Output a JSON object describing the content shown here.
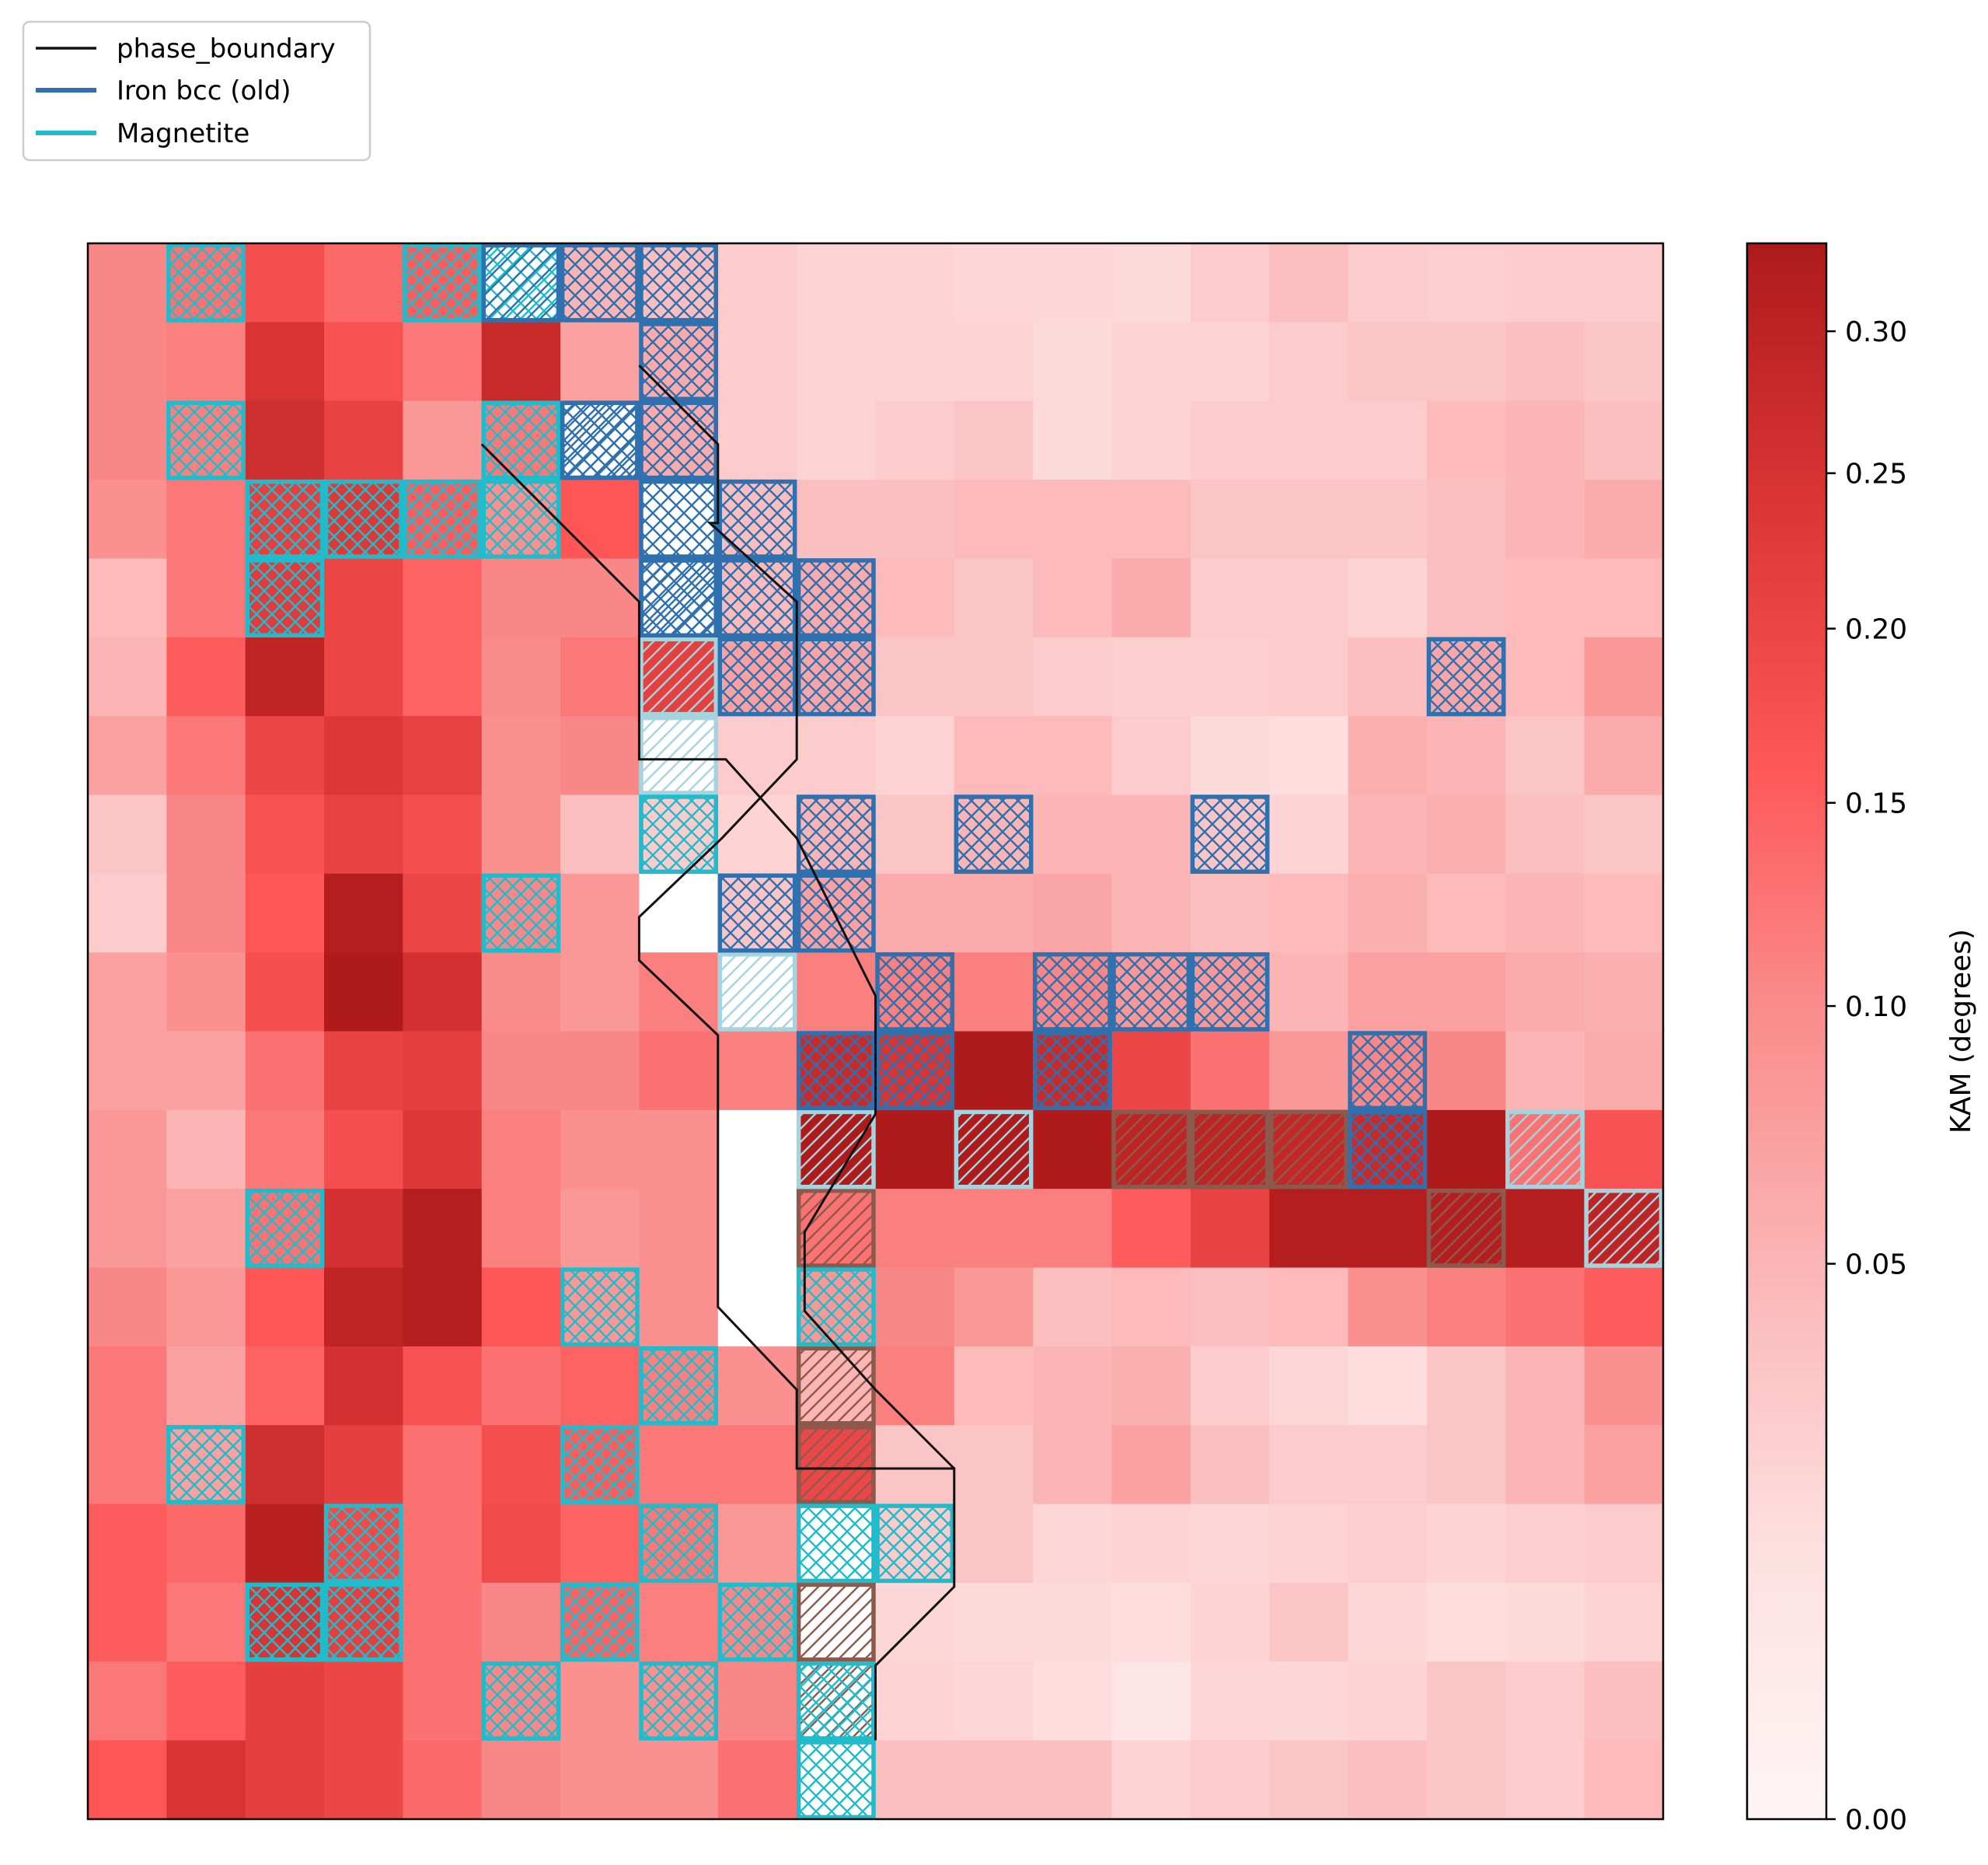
{
  "chart_data": {
    "type": "heatmap",
    "title": "",
    "xlabel": "",
    "ylabel": "",
    "grid": false,
    "legend_placement": "top-left, outside axes",
    "legend": [
      {
        "label": "phase_boundary",
        "color": "#111111"
      },
      {
        "label": "Iron bcc (old)",
        "color": "#2f70af"
      },
      {
        "label": "Magnetite",
        "color": "#20bccb"
      }
    ],
    "colorbar": {
      "label": "KAM (degrees)",
      "range": [
        0,
        0.333
      ],
      "ticks": [
        "0.00",
        "0.05",
        "0.10",
        "0.15",
        "0.20",
        "0.25",
        "0.30"
      ],
      "tick_values": [
        0,
        0.05,
        0.1,
        0.15,
        0.2,
        0.25,
        0.3
      ],
      "nonlinear_scale": true,
      "colormap": [
        "#fff5f5",
        "#fdd6d6",
        "#fbb0b0",
        "#fa8484",
        "#fe5656",
        "#de3838",
        "#ae1a1a"
      ]
    },
    "grid_size": {
      "cols": 20,
      "rows": 20
    },
    "kam_values": [
      [
        0.09,
        0.12,
        0.18,
        0.13,
        0.15,
        0.0,
        0.04,
        0.03,
        0.02,
        0.015,
        0.015,
        0.012,
        0.012,
        0.01,
        0.02,
        0.03,
        0.02,
        0.018,
        0.02,
        0.02
      ],
      [
        0.09,
        0.1,
        0.25,
        0.17,
        0.11,
        0.28,
        0.06,
        0.05,
        0.02,
        0.015,
        0.015,
        0.015,
        0.01,
        0.015,
        0.015,
        0.02,
        0.025,
        0.025,
        0.03,
        0.025
      ],
      [
        0.09,
        0.1,
        0.27,
        0.21,
        0.07,
        0.11,
        0.0,
        0.05,
        0.02,
        0.015,
        0.02,
        0.025,
        0.01,
        0.015,
        0.02,
        0.02,
        0.02,
        0.035,
        0.04,
        0.03
      ],
      [
        0.08,
        0.11,
        0.22,
        0.24,
        0.15,
        0.08,
        0.16,
        0.0,
        0.03,
        0.03,
        0.03,
        0.035,
        0.035,
        0.035,
        0.025,
        0.025,
        0.025,
        0.03,
        0.04,
        0.05
      ],
      [
        0.035,
        0.11,
        0.23,
        0.2,
        0.14,
        0.09,
        0.09,
        0.0,
        0.035,
        0.05,
        0.035,
        0.025,
        0.035,
        0.05,
        0.02,
        0.02,
        0.015,
        0.03,
        0.035,
        0.035
      ],
      [
        0.04,
        0.15,
        0.3,
        0.2,
        0.14,
        0.085,
        0.11,
        0.22,
        0.06,
        0.055,
        0.025,
        0.025,
        0.02,
        0.018,
        0.018,
        0.02,
        0.03,
        0.055,
        0.035,
        0.07
      ],
      [
        0.06,
        0.11,
        0.2,
        0.24,
        0.21,
        0.08,
        0.09,
        0.0,
        0.02,
        0.02,
        0.015,
        0.035,
        0.035,
        0.02,
        0.01,
        0.008,
        0.045,
        0.04,
        0.025,
        0.05
      ],
      [
        0.025,
        0.09,
        0.17,
        0.21,
        0.18,
        0.08,
        0.03,
        0.02,
        0.015,
        0.04,
        0.025,
        0.04,
        0.04,
        0.04,
        0.025,
        0.015,
        0.04,
        0.045,
        0.03,
        0.025
      ],
      [
        0.02,
        0.09,
        0.16,
        0.32,
        0.2,
        0.09,
        0.07,
        0.0,
        0.025,
        0.06,
        0.05,
        0.05,
        0.055,
        0.04,
        0.03,
        0.035,
        0.045,
        0.035,
        0.04,
        0.035
      ],
      [
        0.06,
        0.08,
        0.18,
        0.33,
        0.26,
        0.085,
        0.07,
        0.1,
        0.0,
        0.1,
        0.1,
        0.1,
        0.09,
        0.07,
        0.07,
        0.04,
        0.06,
        0.06,
        0.05,
        0.045
      ],
      [
        0.06,
        0.06,
        0.12,
        0.21,
        0.22,
        0.09,
        0.09,
        0.12,
        0.1,
        0.28,
        0.25,
        0.33,
        0.28,
        0.2,
        0.12,
        0.07,
        0.09,
        0.09,
        0.04,
        0.05
      ],
      [
        0.07,
        0.04,
        0.11,
        0.18,
        0.24,
        0.1,
        0.08,
        0.08,
        0.0,
        0.33,
        0.33,
        0.33,
        0.33,
        0.3,
        0.3,
        0.29,
        0.28,
        0.33,
        0.12,
        0.17
      ],
      [
        0.07,
        0.06,
        0.12,
        0.26,
        0.32,
        0.1,
        0.07,
        0.08,
        0.0,
        0.12,
        0.1,
        0.1,
        0.1,
        0.15,
        0.21,
        0.32,
        0.32,
        0.32,
        0.32,
        0.3
      ],
      [
        0.09,
        0.07,
        0.16,
        0.3,
        0.32,
        0.16,
        0.07,
        0.08,
        0.0,
        0.07,
        0.09,
        0.07,
        0.03,
        0.035,
        0.03,
        0.035,
        0.08,
        0.1,
        0.12,
        0.15
      ],
      [
        0.11,
        0.06,
        0.14,
        0.26,
        0.17,
        0.12,
        0.14,
        0.1,
        0.08,
        0.04,
        0.1,
        0.035,
        0.04,
        0.045,
        0.02,
        0.012,
        0.008,
        0.025,
        0.04,
        0.08
      ],
      [
        0.11,
        0.06,
        0.27,
        0.22,
        0.12,
        0.18,
        0.15,
        0.11,
        0.11,
        0.2,
        0.025,
        0.025,
        0.04,
        0.06,
        0.03,
        0.02,
        0.02,
        0.025,
        0.04,
        0.06
      ],
      [
        0.15,
        0.13,
        0.31,
        0.19,
        0.12,
        0.19,
        0.14,
        0.11,
        0.07,
        0.0,
        0.02,
        0.025,
        0.012,
        0.015,
        0.012,
        0.015,
        0.018,
        0.015,
        0.018,
        0.02
      ],
      [
        0.15,
        0.11,
        0.25,
        0.22,
        0.12,
        0.09,
        0.14,
        0.1,
        0.09,
        0.0,
        0.012,
        0.01,
        0.01,
        0.008,
        0.015,
        0.025,
        0.012,
        0.008,
        0.01,
        0.015
      ],
      [
        0.11,
        0.15,
        0.22,
        0.2,
        0.12,
        0.09,
        0.08,
        0.08,
        0.09,
        0.0,
        0.015,
        0.012,
        0.008,
        0.004,
        0.012,
        0.012,
        0.015,
        0.025,
        0.02,
        0.03
      ],
      [
        0.16,
        0.25,
        0.22,
        0.2,
        0.13,
        0.09,
        0.08,
        0.08,
        0.12,
        0.0,
        0.03,
        0.03,
        0.03,
        0.015,
        0.02,
        0.025,
        0.03,
        0.025,
        0.02,
        0.035
      ]
    ],
    "phase_overlays": {
      "magnetite": [
        [
          1,
          0
        ],
        [
          4,
          0
        ],
        [
          5,
          0
        ],
        [
          1,
          2
        ],
        [
          5,
          2
        ],
        [
          2,
          3
        ],
        [
          3,
          3
        ],
        [
          4,
          3
        ],
        [
          5,
          3
        ],
        [
          2,
          4
        ],
        [
          7,
          7
        ],
        [
          5,
          8
        ],
        [
          2,
          12
        ],
        [
          6,
          13
        ],
        [
          9,
          13
        ],
        [
          7,
          14
        ],
        [
          1,
          15
        ],
        [
          6,
          15
        ],
        [
          3,
          16
        ],
        [
          7,
          16
        ],
        [
          9,
          16
        ],
        [
          10,
          16
        ],
        [
          2,
          17
        ],
        [
          3,
          17
        ],
        [
          6,
          17
        ],
        [
          8,
          17
        ],
        [
          5,
          18
        ],
        [
          7,
          18
        ],
        [
          9,
          18
        ],
        [
          9,
          19
        ]
      ],
      "iron_bcc_old": [
        [
          6,
          0
        ],
        [
          7,
          0
        ],
        [
          7,
          1
        ],
        [
          6,
          2
        ],
        [
          7,
          2
        ],
        [
          7,
          3
        ],
        [
          8,
          3
        ],
        [
          7,
          4
        ],
        [
          8,
          4
        ],
        [
          9,
          4
        ],
        [
          8,
          5
        ],
        [
          9,
          5
        ],
        [
          17,
          5
        ],
        [
          9,
          7
        ],
        [
          11,
          7
        ],
        [
          14,
          7
        ],
        [
          8,
          8
        ],
        [
          9,
          8
        ],
        [
          10,
          9
        ],
        [
          12,
          9
        ],
        [
          13,
          9
        ],
        [
          14,
          9
        ],
        [
          9,
          10
        ],
        [
          10,
          10
        ],
        [
          12,
          10
        ],
        [
          16,
          10
        ],
        [
          16,
          11
        ]
      ],
      "iron_bcc_old_diagonal": [
        [
          5,
          0
        ],
        [
          6,
          2
        ],
        [
          7,
          4
        ]
      ],
      "light_blue_diagonal": [
        [
          7,
          5
        ],
        [
          7,
          6
        ],
        [
          8,
          9
        ],
        [
          9,
          11
        ],
        [
          11,
          11
        ],
        [
          18,
          11
        ],
        [
          19,
          12
        ]
      ],
      "brown_diagonal": [
        [
          13,
          11
        ],
        [
          14,
          11
        ],
        [
          15,
          11
        ],
        [
          17,
          12
        ],
        [
          9,
          12
        ],
        [
          9,
          14
        ],
        [
          9,
          15
        ],
        [
          9,
          17
        ],
        [
          9,
          18
        ]
      ]
    },
    "phase_boundary": [
      [
        7.0,
        1.55
      ],
      [
        8.0,
        2.55
      ],
      [
        8.0,
        3.55
      ],
      [
        7.9,
        3.55
      ],
      [
        9.0,
        4.55
      ],
      [
        9.0,
        6.55
      ],
      [
        8.05,
        7.55
      ],
      [
        7.0,
        8.55
      ],
      [
        7.0,
        9.1
      ],
      [
        8.0,
        10.05
      ],
      [
        8.0,
        13.5
      ],
      [
        9.0,
        14.55
      ],
      [
        9.0,
        15.55
      ],
      [
        10.0,
        15.55
      ],
      [
        11.0,
        15.55
      ],
      [
        11.0,
        17.05
      ],
      [
        10.0,
        18.05
      ],
      [
        10.0,
        19.0
      ]
    ],
    "phase_boundary_2": [
      [
        5.0,
        2.55
      ],
      [
        6.0,
        3.55
      ],
      [
        7.0,
        4.55
      ],
      [
        7.0,
        6.55
      ],
      [
        8.1,
        6.55
      ],
      [
        9.0,
        7.55
      ],
      [
        10.0,
        9.55
      ],
      [
        10.0,
        10.05
      ],
      [
        10.0,
        11.05
      ],
      [
        9.1,
        12.55
      ],
      [
        9.1,
        13.55
      ],
      [
        10.0,
        14.55
      ],
      [
        11.0,
        15.55
      ]
    ]
  }
}
